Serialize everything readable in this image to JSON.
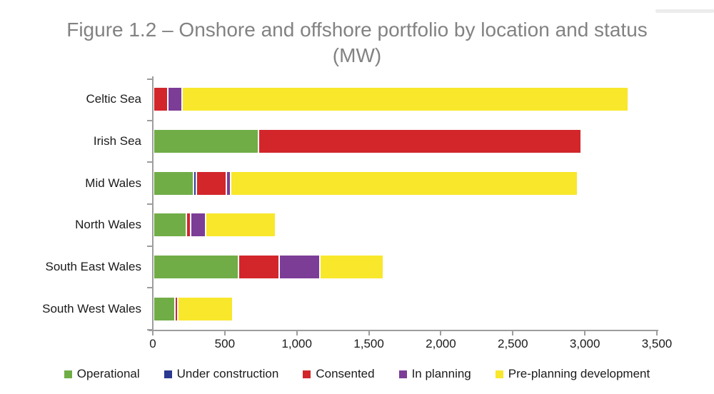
{
  "title": "Figure 1.2 – Onshore and offshore portfolio by location and status (MW)",
  "colors": {
    "title_text": "#828282",
    "axis": "#9d9d9d",
    "label_text": "#1b1b1b",
    "operational": "#70ad47",
    "under_construction": "#2b3990",
    "consented": "#d2262b",
    "in_planning": "#7c3d97",
    "pre_planning": "#f8e72b"
  },
  "chart_data": {
    "type": "bar",
    "orientation": "horizontal",
    "stacked": true,
    "title": "Figure 1.2 – Onshore and offshore portfolio by location and status (MW)",
    "units": "MW",
    "categories": [
      "Celtic Sea",
      "Irish Sea",
      "Mid Wales",
      "North Wales",
      "South East Wales",
      "South West Wales"
    ],
    "series": [
      {
        "name": "Operational",
        "color": "#70ad47",
        "values": [
          0,
          730,
          280,
          230,
          590,
          150
        ]
      },
      {
        "name": "Under construction",
        "color": "#2b3990",
        "values": [
          0,
          0,
          10,
          0,
          0,
          0
        ]
      },
      {
        "name": "Consented",
        "color": "#d2262b",
        "values": [
          100,
          2240,
          210,
          30,
          285,
          10
        ]
      },
      {
        "name": "In planning",
        "color": "#7c3d97",
        "values": [
          100,
          0,
          30,
          105,
          285,
          0
        ]
      },
      {
        "name": "Pre-planning development",
        "color": "#f8e72b",
        "values": [
          3100,
          0,
          2410,
          485,
          440,
          380
        ]
      }
    ],
    "category_totals": [
      3300,
      2970,
      2940,
      850,
      1600,
      540
    ],
    "xlabel": "",
    "ylabel": "",
    "xlim": [
      0,
      3500
    ],
    "x_tick_values": [
      0,
      500,
      1000,
      1500,
      2000,
      2500,
      3000,
      3500
    ],
    "x_ticks": [
      "0",
      "500",
      "1,000",
      "1,500",
      "2,000",
      "2,500",
      "3,000",
      "3,500"
    ],
    "grid": false,
    "legend_position": "bottom"
  }
}
